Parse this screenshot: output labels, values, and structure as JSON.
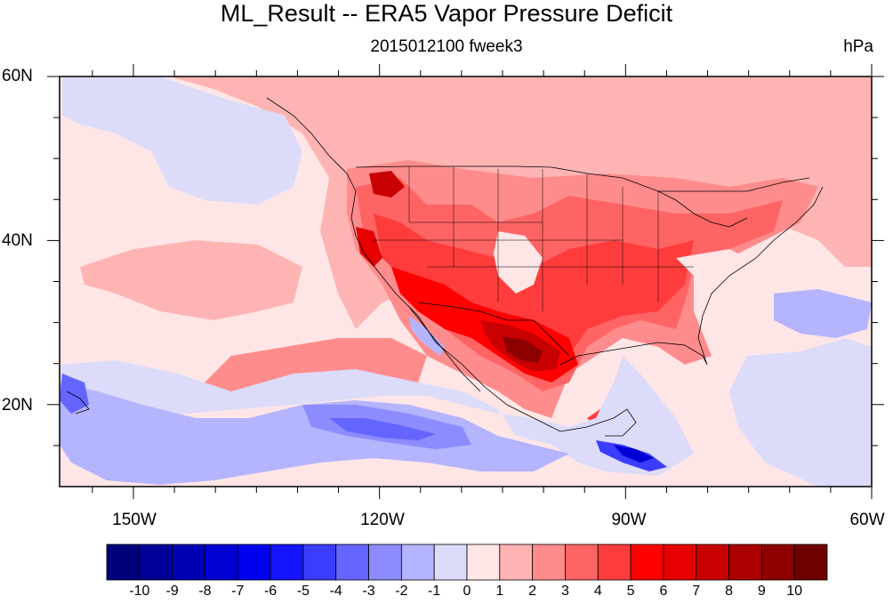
{
  "title": "ML_Result -- ERA5 Vapor Pressure Deficit",
  "subtitle": "2015012100 fweek3",
  "units": "hPa",
  "axes": {
    "lat_labels": [
      "60N",
      "40N",
      "20N"
    ],
    "lat_values": [
      60,
      40,
      20
    ],
    "lon_labels": [
      "150W",
      "120W",
      "90W",
      "60W"
    ],
    "lon_values": [
      -150,
      -120,
      -90,
      -60
    ],
    "lon_range": [
      -159,
      -60
    ],
    "lat_range": [
      10,
      60
    ]
  },
  "colorbar": {
    "labels": [
      "-10",
      "-9",
      "-8",
      "-7",
      "-6",
      "-5",
      "-4",
      "-3",
      "-2",
      "-1",
      "0",
      "1",
      "2",
      "3",
      "4",
      "5",
      "6",
      "7",
      "8",
      "9",
      "10"
    ],
    "colors": [
      "#00007a",
      "#000096",
      "#0000b4",
      "#0000d2",
      "#0000f0",
      "#1414ff",
      "#3c3cff",
      "#6464ff",
      "#8c8cff",
      "#b4b4ff",
      "#dcdcfa",
      "#ffe6e6",
      "#ffb4b4",
      "#ff8c8c",
      "#ff6464",
      "#ff3c3c",
      "#ff0000",
      "#e60000",
      "#c80000",
      "#aa0000",
      "#8c0000",
      "#6e0000"
    ]
  },
  "colors": {
    "background_field": "#ffe6e6",
    "coast": "#000000"
  }
}
